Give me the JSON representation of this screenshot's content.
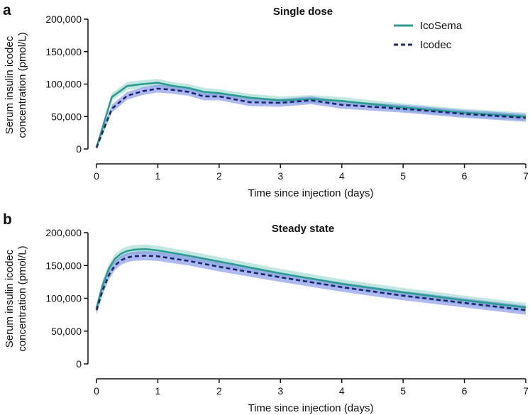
{
  "colors": {
    "icosema_line": "#2a9d8f",
    "icosema_band": "#8fd3c9",
    "icodec_line": "#1c2470",
    "icodec_band": "#6e80e6",
    "axis": "#111111"
  },
  "legend": [
    {
      "name": "IcoSema",
      "style": "solid"
    },
    {
      "name": "Icodec",
      "style": "dashed"
    }
  ],
  "chart_data": [
    {
      "type": "line",
      "panel_letter": "a",
      "title": "Single dose",
      "xlabel": "Time since injection (days)",
      "ylabel": [
        "Serum insulin icodec",
        "concentration (pmol/L)"
      ],
      "xlim": [
        0,
        7
      ],
      "ylim": [
        0,
        200000
      ],
      "x_ticks": [
        0,
        1,
        2,
        3,
        4,
        5,
        6,
        7
      ],
      "y_ticks": [
        0,
        50000,
        100000,
        150000,
        200000
      ],
      "y_tick_labels": [
        "0",
        "50,000",
        "100,000",
        "150,000",
        "200,000"
      ],
      "series": [
        {
          "name": "IcoSema",
          "style": "solid",
          "x": [
            0,
            0.25,
            0.5,
            0.75,
            1,
            1.25,
            1.5,
            1.75,
            2,
            2.5,
            3,
            3.5,
            4,
            5,
            6,
            7
          ],
          "y": [
            2000,
            80000,
            97000,
            100000,
            102000,
            97000,
            94000,
            88000,
            86000,
            79000,
            75000,
            77000,
            74000,
            64000,
            56000,
            50000
          ],
          "band_width": 6000
        },
        {
          "name": "Icodec",
          "style": "dashed",
          "x": [
            0,
            0.25,
            0.5,
            0.75,
            1,
            1.25,
            1.5,
            1.75,
            2,
            2.5,
            3,
            3.5,
            4,
            5,
            6,
            7
          ],
          "y": [
            2000,
            62000,
            82000,
            89000,
            93000,
            91000,
            88000,
            81000,
            81000,
            72000,
            71000,
            75000,
            68000,
            62000,
            54000,
            48000
          ],
          "band_width": 6000
        }
      ]
    },
    {
      "type": "line",
      "panel_letter": "b",
      "title": "Steady state",
      "xlabel": "Time since injection (days)",
      "ylabel": [
        "Serum insulin icodec",
        "concentration (pmol/L)"
      ],
      "xlim": [
        0,
        7
      ],
      "ylim": [
        0,
        200000
      ],
      "x_ticks": [
        0,
        1,
        2,
        3,
        4,
        5,
        6,
        7
      ],
      "y_ticks": [
        0,
        50000,
        100000,
        150000,
        200000
      ],
      "y_tick_labels": [
        "0",
        "50,000",
        "100,000",
        "150,000",
        "200,000"
      ],
      "series": [
        {
          "name": "IcoSema",
          "style": "solid",
          "x": [
            0,
            0.1,
            0.2,
            0.3,
            0.4,
            0.5,
            0.6,
            0.8,
            1,
            1.5,
            2,
            3,
            4,
            5,
            6,
            7
          ],
          "y": [
            85000,
            120000,
            145000,
            160000,
            168000,
            172000,
            174000,
            175000,
            173000,
            165000,
            156000,
            138000,
            122000,
            109000,
            97000,
            86000
          ],
          "band_width": 7000
        },
        {
          "name": "Icodec",
          "style": "dashed",
          "x": [
            0,
            0.1,
            0.2,
            0.3,
            0.4,
            0.5,
            0.6,
            0.8,
            1,
            1.5,
            2,
            3,
            4,
            5,
            6,
            7
          ],
          "y": [
            82000,
            112000,
            135000,
            150000,
            158000,
            162000,
            164000,
            165000,
            164000,
            157000,
            148000,
            132000,
            117000,
            104000,
            93000,
            82000
          ],
          "band_width": 7000
        }
      ]
    }
  ]
}
